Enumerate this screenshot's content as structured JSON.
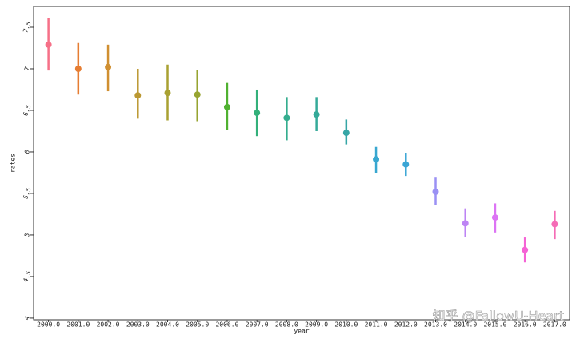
{
  "chart_data": {
    "type": "pointplot",
    "xlabel": "year",
    "ylabel": "rates",
    "watermark": "知乎 @FallowU-Heart",
    "categories": [
      "2000.0",
      "2001.0",
      "2002.0",
      "2003.0",
      "2004.0",
      "2005.0",
      "2006.0",
      "2007.0",
      "2008.0",
      "2009.0",
      "2010.0",
      "2011.0",
      "2012.0",
      "2013.0",
      "2014.0",
      "2015.0",
      "2016.0",
      "2017.0"
    ],
    "values": [
      7.29,
      7.0,
      7.02,
      6.68,
      6.71,
      6.69,
      6.54,
      6.47,
      6.41,
      6.45,
      6.23,
      5.91,
      5.85,
      5.52,
      5.14,
      5.21,
      4.82,
      5.13
    ],
    "ci_low": [
      6.98,
      6.69,
      6.73,
      6.4,
      6.38,
      6.37,
      6.26,
      6.19,
      6.14,
      6.25,
      6.09,
      5.74,
      5.71,
      5.36,
      4.98,
      5.03,
      4.67,
      4.95
    ],
    "ci_high": [
      7.61,
      7.31,
      7.29,
      7.0,
      7.05,
      6.99,
      6.83,
      6.75,
      6.66,
      6.66,
      6.39,
      6.06,
      5.99,
      5.69,
      5.32,
      5.38,
      4.97,
      5.29
    ],
    "colors": [
      "#f67088",
      "#e67d32",
      "#d08f31",
      "#bb9832",
      "#a9a132",
      "#97a431",
      "#50b131",
      "#33b07a",
      "#34ad8e",
      "#35aa99",
      "#36a6a6",
      "#38a7d0",
      "#3aa5d5",
      "#9a91f4",
      "#bd84f4",
      "#dc74f4",
      "#f563d5",
      "#f56cb6"
    ],
    "ylim": [
      3.98,
      7.75
    ],
    "yticks": [
      4.0,
      4.5,
      5.0,
      5.5,
      6.0,
      6.5,
      7.0,
      7.5
    ]
  }
}
